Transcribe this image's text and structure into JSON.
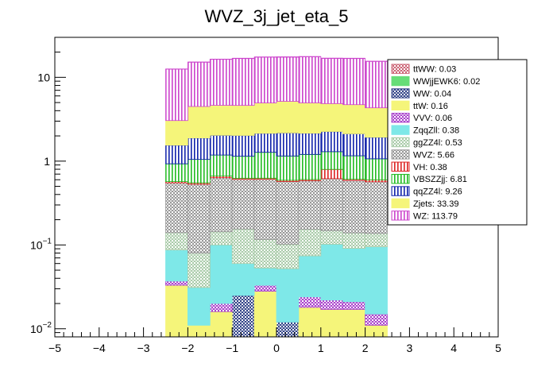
{
  "chart_data": {
    "type": "bar",
    "stacked": true,
    "title": "WVZ_3j_jet_eta_5",
    "xlabel": "",
    "ylabel": "",
    "x_range": [
      -5,
      5
    ],
    "y_range": [
      0.008,
      30
    ],
    "y_scale": "log",
    "x_ticks": [
      "−5",
      "−4",
      "−3",
      "−2",
      "−1",
      "0",
      "1",
      "2",
      "3",
      "4",
      "5"
    ],
    "y_ticks": [
      {
        "value": 0.01,
        "label": "10",
        "exp": "−2"
      },
      {
        "value": 0.1,
        "label": "10",
        "exp": "−1"
      },
      {
        "value": 1,
        "label": "1",
        "exp": ""
      },
      {
        "value": 10,
        "label": "10",
        "exp": ""
      }
    ],
    "bin_edges": [
      -2.5,
      -2.0,
      -1.5,
      -1.0,
      -0.5,
      0.0,
      0.5,
      1.0,
      1.5,
      2.0,
      2.5
    ],
    "legend_position": "top-right",
    "stack_order": [
      "ttWW",
      "WWjjEWK6",
      "WW",
      "ttW",
      "VVV",
      "ZqqZll",
      "ggZZ4l",
      "WVZ",
      "VH",
      "VBSZZjj",
      "qqZZ4l",
      "Zjets",
      "WZ"
    ],
    "totals": [
      0.03,
      0.02,
      0.04,
      0.16,
      0.06,
      0.38,
      0.53,
      5.66,
      0.38,
      6.81,
      9.26,
      33.39,
      113.79
    ],
    "series": [
      {
        "name": "ttWW",
        "values": [
          0,
          0,
          0,
          0,
          0,
          0,
          0,
          0,
          0,
          0
        ],
        "total": "0.03",
        "color": "#cc6677",
        "pattern": "dots"
      },
      {
        "name": "WWjjEWK6",
        "values": [
          0,
          0,
          0,
          0,
          0.006,
          0,
          0,
          0,
          0,
          0
        ],
        "total": "0.02",
        "color": "#66dd77",
        "pattern": "solid"
      },
      {
        "name": "WW",
        "values": [
          0,
          0,
          0,
          0.025,
          0,
          0.012,
          0,
          0,
          0,
          0
        ],
        "total": "0.04",
        "color": "#334488",
        "pattern": "dots"
      },
      {
        "name": "ttW",
        "values": [
          0.033,
          0.011,
          0.016,
          0,
          0.022,
          0,
          0.018,
          0.017,
          0.017,
          0.011
        ],
        "total": "0.16",
        "color": "#f5f57a",
        "pattern": "solid"
      },
      {
        "name": "VVV",
        "values": [
          0.004,
          0,
          0.004,
          0,
          0.005,
          0,
          0.006,
          0.005,
          0.004,
          0.004
        ],
        "total": "0.06",
        "color": "#aa44cc",
        "pattern": "dots"
      },
      {
        "name": "ZqqZll",
        "values": [
          0.05,
          0.02,
          0.08,
          0.035,
          0.02,
          0.04,
          0.05,
          0.08,
          0.07,
          0.08
        ],
        "total": "0.38",
        "color": "#7ee8e8",
        "pattern": "solid"
      },
      {
        "name": "ggZZ4l",
        "values": [
          0.053,
          0.049,
          0.044,
          0.095,
          0.063,
          0.05,
          0.08,
          0.046,
          0.048,
          0.042
        ],
        "total": "0.53",
        "color": "#aaccaa",
        "pattern": "dots"
      },
      {
        "name": "WVZ",
        "values": [
          0.41,
          0.45,
          0.49,
          0.45,
          0.49,
          0.47,
          0.43,
          0.47,
          0.45,
          0.43
        ],
        "total": "5.66",
        "color": "#999999",
        "pattern": "dots"
      },
      {
        "name": "VH",
        "values": [
          0.02,
          0.02,
          0.03,
          0.02,
          0.02,
          0.02,
          0.02,
          0.18,
          0.02,
          0.03
        ],
        "total": "0.38",
        "color": "#dd2222",
        "pattern": "vlines"
      },
      {
        "name": "VBSZZjj",
        "values": [
          0.36,
          0.5,
          0.52,
          0.52,
          0.65,
          0.56,
          0.6,
          0.5,
          0.55,
          0.47
        ],
        "total": "6.81",
        "color": "#22bb22",
        "pattern": "vlines"
      },
      {
        "name": "qqZZ4l",
        "values": [
          0.62,
          0.84,
          0.85,
          0.88,
          0.87,
          1.02,
          0.95,
          0.96,
          0.96,
          0.86
        ],
        "total": "9.26",
        "color": "#1122aa",
        "pattern": "vlines"
      },
      {
        "name": "Zjets",
        "values": [
          1.5,
          2.6,
          2.6,
          2.6,
          2.8,
          3.0,
          2.8,
          2.6,
          2.6,
          2.4
        ],
        "total": "33.39",
        "color": "#f5f57a",
        "pattern": "solid"
      },
      {
        "name": "WZ",
        "values": [
          9.5,
          10.7,
          11.8,
          12.2,
          12.5,
          12.3,
          12.7,
          12.0,
          12.1,
          11.2
        ],
        "total": "113.79",
        "color": "#cc44cc",
        "pattern": "vlines"
      }
    ]
  }
}
